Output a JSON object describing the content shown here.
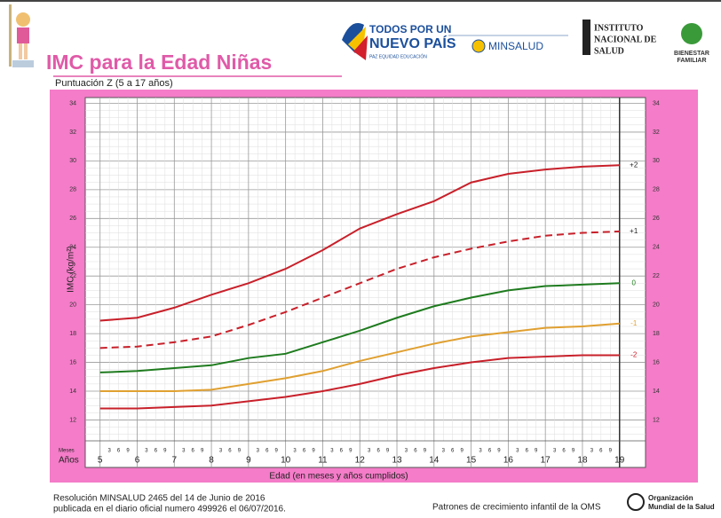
{
  "header": {
    "title": "IMC para la Edad Niñas",
    "logo1_line1": "TODOS POR UN",
    "logo1_line2": "NUEVO PAÍS",
    "logo1_line3": "PAZ  EQUIDAD  EDUCACIÓN",
    "logo2": "MINSALUD",
    "logo3_line1": "INSTITUTO",
    "logo3_line2": "NACIONAL DE",
    "logo3_line3": "SALUD",
    "logo4_line1": "BIENESTAR",
    "logo4_line2": "FAMILIAR"
  },
  "chart_data": {
    "type": "line",
    "subtitle": "Puntuación Z (5 a 17 años)",
    "y_label": "IMC (kg/m²)",
    "x_label": "Edad (en meses y años cumplidos)",
    "months_label": "Meses",
    "years_label": "Años",
    "month_labels": [
      "3",
      "6",
      "9"
    ],
    "x": [
      5,
      6,
      7,
      8,
      9,
      10,
      11,
      12,
      13,
      14,
      15,
      16,
      17,
      18,
      19
    ],
    "series": [
      {
        "name": "+2",
        "color": "#c8202a",
        "dashed": false,
        "values": [
          18.9,
          19.1,
          19.8,
          20.7,
          21.5,
          22.5,
          23.8,
          25.3,
          26.3,
          27.2,
          28.5,
          29.1,
          29.4,
          29.6,
          29.7
        ]
      },
      {
        "name": "+1",
        "color": "#c8202a",
        "dashed": true,
        "values": [
          17.0,
          17.1,
          17.4,
          17.8,
          18.6,
          19.5,
          20.5,
          21.5,
          22.5,
          23.3,
          23.9,
          24.4,
          24.8,
          25.0,
          25.1
        ]
      },
      {
        "name": "0",
        "color": "#1e7b1e",
        "dashed": false,
        "values": [
          15.3,
          15.4,
          15.6,
          15.8,
          16.3,
          16.6,
          17.4,
          18.2,
          19.1,
          19.9,
          20.5,
          21.0,
          21.3,
          21.4,
          21.5
        ]
      },
      {
        "name": "-1",
        "color": "#e0a030",
        "dashed": false,
        "values": [
          14.0,
          14.0,
          14.0,
          14.1,
          14.5,
          14.9,
          15.4,
          16.1,
          16.7,
          17.3,
          17.8,
          18.1,
          18.4,
          18.5,
          18.7
        ]
      },
      {
        "name": "-2",
        "color": "#c8202a",
        "dashed": false,
        "values": [
          12.8,
          12.8,
          12.9,
          13.0,
          13.3,
          13.6,
          14.0,
          14.5,
          15.1,
          15.6,
          16.0,
          16.3,
          16.4,
          16.5,
          16.5
        ]
      }
    ],
    "xlim": [
      4.6,
      19.7
    ],
    "xticks": [
      5,
      6,
      7,
      8,
      9,
      10,
      11,
      12,
      13,
      14,
      15,
      16,
      17,
      18,
      19
    ],
    "ylim": [
      8.7,
      34.4
    ],
    "yticks": [
      12,
      14,
      16,
      18,
      20,
      22,
      24,
      26,
      28,
      30,
      32,
      34
    ],
    "grid": true
  },
  "footer": {
    "line1": "Resolución MINSALUD 2465 del 14 de Junio de 2016",
    "line2": "publicada en el diario oficial numero 499926 el 06/07/2016.",
    "center": "Patrones de crecimiento infantil de la OMS",
    "oms_line1": "Organización",
    "oms_line2": "Mundial de la Salud"
  }
}
